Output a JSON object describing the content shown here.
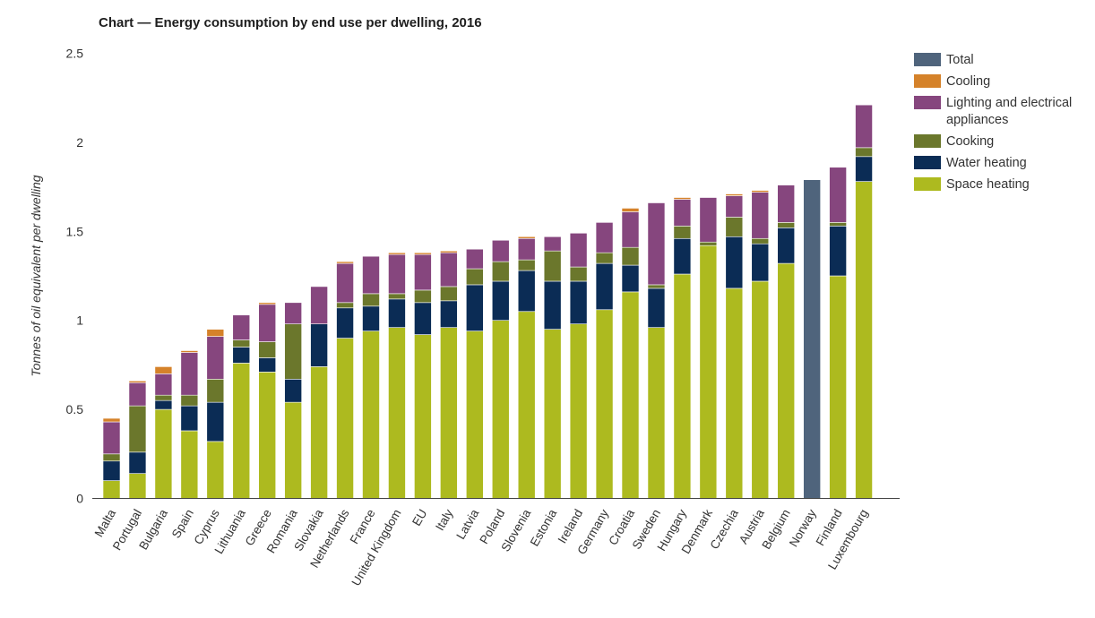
{
  "title": "Chart — Energy consumption by end use per dwelling, 2016",
  "chart_data": {
    "type": "bar",
    "stacked": true,
    "title": "Chart — Energy consumption by end use per dwelling, 2016",
    "xlabel": "",
    "ylabel": "Tonnes of oil equivalent per dwelling",
    "ylim": [
      0,
      2.5
    ],
    "yticks": [
      0,
      0.5,
      1,
      1.5,
      2,
      2.5
    ],
    "ytick_labels": [
      "0",
      "0.5",
      "1",
      "1.5",
      "2",
      "2.5"
    ],
    "grid": false,
    "legend_position": "right",
    "categories": [
      "Malta",
      "Portugal",
      "Bulgaria",
      "Spain",
      "Cyprus",
      "Lithuania",
      "Greece",
      "Romania",
      "Slovakia",
      "Netherlands",
      "France",
      "United Kingdom",
      "EU",
      "Italy",
      "Latvia",
      "Poland",
      "Slovenia",
      "Estonia",
      "Ireland",
      "Germany",
      "Croatia",
      "Sweden",
      "Hungary",
      "Denmark",
      "Czechia",
      "Austria",
      "Belgium",
      "Norway",
      "Finland",
      "Luxembourg"
    ],
    "series": [
      {
        "name": "Space heating",
        "color": "#adba1f",
        "values": [
          0.1,
          0.14,
          0.5,
          0.38,
          0.32,
          0.76,
          0.71,
          0.54,
          0.74,
          0.9,
          0.94,
          0.96,
          0.92,
          0.96,
          0.94,
          1.0,
          1.05,
          0.95,
          0.98,
          1.06,
          1.16,
          0.96,
          1.26,
          1.42,
          1.18,
          1.22,
          1.32,
          0,
          1.25,
          1.78
        ]
      },
      {
        "name": "Water heating",
        "color": "#0b2c55",
        "values": [
          0.11,
          0.12,
          0.05,
          0.14,
          0.22,
          0.09,
          0.08,
          0.13,
          0.24,
          0.17,
          0.14,
          0.16,
          0.18,
          0.15,
          0.26,
          0.22,
          0.23,
          0.27,
          0.24,
          0.26,
          0.15,
          0.22,
          0.2,
          0,
          0.29,
          0.21,
          0.2,
          0,
          0.28,
          0.14
        ]
      },
      {
        "name": "Cooking",
        "color": "#6b772c",
        "values": [
          0.04,
          0.26,
          0.03,
          0.06,
          0.13,
          0.04,
          0.09,
          0.31,
          0,
          0.03,
          0.07,
          0.03,
          0.07,
          0.08,
          0.09,
          0.11,
          0.06,
          0.17,
          0.08,
          0.06,
          0.1,
          0.02,
          0.07,
          0.02,
          0.11,
          0.03,
          0.03,
          0,
          0.02,
          0.05
        ]
      },
      {
        "name": "Lighting and electrical appliances",
        "color": "#86467e",
        "values": [
          0.18,
          0.13,
          0.12,
          0.24,
          0.24,
          0.14,
          0.21,
          0.12,
          0.21,
          0.22,
          0.21,
          0.22,
          0.2,
          0.19,
          0.11,
          0.12,
          0.12,
          0.08,
          0.19,
          0.17,
          0.2,
          0.46,
          0.15,
          0.25,
          0.12,
          0.26,
          0.21,
          0,
          0.31,
          0.24
        ]
      },
      {
        "name": "Cooling",
        "color": "#d5822a",
        "values": [
          0.02,
          0.01,
          0.04,
          0.01,
          0.04,
          0,
          0.01,
          0,
          0,
          0.01,
          0,
          0.01,
          0.01,
          0.01,
          0,
          0,
          0.01,
          0,
          0,
          0,
          0.02,
          0,
          0.01,
          0,
          0.01,
          0.01,
          0,
          0,
          0,
          0
        ]
      },
      {
        "name": "Total",
        "color": "#4f647c",
        "values": [
          0,
          0,
          0,
          0,
          0,
          0,
          0,
          0,
          0,
          0,
          0,
          0,
          0,
          0,
          0,
          0,
          0,
          0,
          0,
          0,
          0,
          0,
          0,
          0,
          0,
          0,
          0,
          1.79,
          0,
          0
        ]
      }
    ]
  },
  "legend": {
    "items": [
      {
        "label": "Total",
        "color": "#4f647c"
      },
      {
        "label": "Cooling",
        "color": "#d5822a"
      },
      {
        "label": "Lighting and electrical appliances",
        "color": "#86467e"
      },
      {
        "label": "Cooking",
        "color": "#6b772c"
      },
      {
        "label": "Water heating",
        "color": "#0b2c55"
      },
      {
        "label": "Space heating",
        "color": "#adba1f"
      }
    ]
  }
}
